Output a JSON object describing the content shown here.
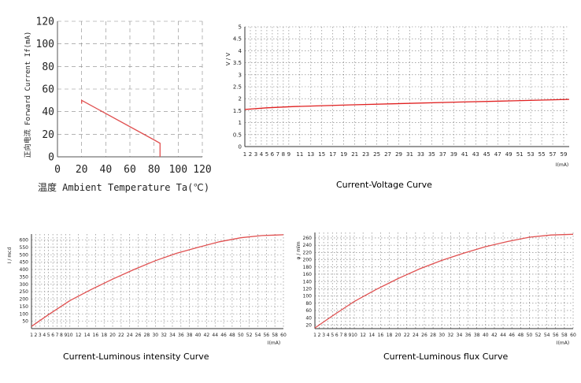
{
  "chart_data": [
    {
      "type": "line",
      "id": "temp",
      "xlabel": "温度 Ambient Temperature Ta(℃)",
      "ylabel": "正向电流 Forward Current If(mA)",
      "xlim": [
        0,
        120
      ],
      "ylim": [
        0,
        120
      ],
      "x_ticks": [
        "0",
        "20",
        "40",
        "60",
        "80",
        "100",
        "120"
      ],
      "y_ticks": [
        "0",
        "20",
        "40",
        "60",
        "80",
        "100",
        "120"
      ],
      "grid": "dashed",
      "series": [
        {
          "x": [
            20,
            20,
            80,
            85,
            85
          ],
          "y": [
            47,
            50,
            15,
            12,
            0
          ]
        }
      ],
      "colors": {
        "line": "#e05050",
        "grid": "#888888",
        "axis": "#555555"
      }
    },
    {
      "type": "line",
      "id": "iv",
      "caption": "Current-Voltage Curve",
      "xlabel": "I(mA)",
      "ylabel": "V / V",
      "xlim": [
        1,
        60
      ],
      "ylim": [
        0,
        5
      ],
      "x_ticks": [
        "1",
        "2",
        "3",
        "4",
        "5",
        "6",
        "7",
        "8",
        "9",
        "11",
        "13",
        "15",
        "17",
        "19",
        "21",
        "23",
        "25",
        "27",
        "29",
        "31",
        "33",
        "35",
        "37",
        "39",
        "41",
        "43",
        "45",
        "47",
        "49",
        "51",
        "53",
        "55",
        "57",
        "59"
      ],
      "y_ticks": [
        "0",
        "0.5",
        "1",
        "1.5",
        "2",
        "2.5",
        "3",
        "3.5",
        "4",
        "4.5",
        "5"
      ],
      "grid": "dotted",
      "series": [
        {
          "x": [
            1,
            5,
            10,
            20,
            30,
            40,
            50,
            60
          ],
          "y": [
            1.55,
            1.62,
            1.67,
            1.74,
            1.8,
            1.86,
            1.91,
            1.97
          ]
        }
      ],
      "colors": {
        "line": "#e02020",
        "grid": "#777777",
        "axis": "#333333"
      }
    },
    {
      "type": "line",
      "id": "iv_lum",
      "caption": "Current-Luminous intensity Curve",
      "xlabel": "I(mA)",
      "ylabel": "I / mcd",
      "xlim": [
        1,
        60
      ],
      "ylim": [
        0,
        640
      ],
      "x_ticks": [
        "1",
        "2",
        "3",
        "4",
        "5",
        "6",
        "7",
        "8",
        "9",
        "10",
        "12",
        "14",
        "16",
        "18",
        "20",
        "22",
        "24",
        "26",
        "28",
        "30",
        "32",
        "34",
        "36",
        "38",
        "40",
        "42",
        "44",
        "46",
        "48",
        "50",
        "52",
        "54",
        "56",
        "58",
        "60"
      ],
      "y_ticks": [
        "50",
        "100",
        "150",
        "200",
        "250",
        "300",
        "350",
        "400",
        "450",
        "500",
        "550",
        "600"
      ],
      "grid": "dotted",
      "series": [
        {
          "x": [
            1,
            5,
            10,
            15,
            20,
            25,
            30,
            35,
            40,
            45,
            50,
            55,
            58,
            60
          ],
          "y": [
            15,
            95,
            190,
            265,
            335,
            400,
            460,
            510,
            550,
            588,
            615,
            630,
            633,
            635
          ]
        }
      ],
      "colors": {
        "line": "#e05050",
        "grid": "#777777",
        "axis": "#333333"
      }
    },
    {
      "type": "line",
      "id": "flux",
      "caption": "Current-Luminous flux Curve",
      "xlabel": "I(mA)",
      "ylabel": "φ / mlm",
      "xlim": [
        1,
        60
      ],
      "ylim": [
        10,
        275
      ],
      "x_ticks": [
        "1",
        "2",
        "3",
        "4",
        "5",
        "6",
        "7",
        "8",
        "9",
        "10",
        "12",
        "14",
        "16",
        "18",
        "20",
        "22",
        "24",
        "26",
        "28",
        "30",
        "32",
        "34",
        "36",
        "38",
        "40",
        "42",
        "44",
        "46",
        "48",
        "50",
        "52",
        "54",
        "56",
        "58",
        "60"
      ],
      "y_ticks": [
        "20",
        "40",
        "60",
        "80",
        "100",
        "120",
        "140",
        "160",
        "180",
        "200",
        "220",
        "240",
        "260"
      ],
      "grid": "dotted",
      "series": [
        {
          "x": [
            1,
            5,
            10,
            15,
            20,
            25,
            30,
            35,
            40,
            45,
            50,
            55,
            60
          ],
          "y": [
            12,
            45,
            85,
            118,
            148,
            175,
            198,
            218,
            236,
            250,
            262,
            268,
            270
          ]
        }
      ],
      "colors": {
        "line": "#e05050",
        "grid": "#777777",
        "axis": "#333333"
      }
    }
  ]
}
